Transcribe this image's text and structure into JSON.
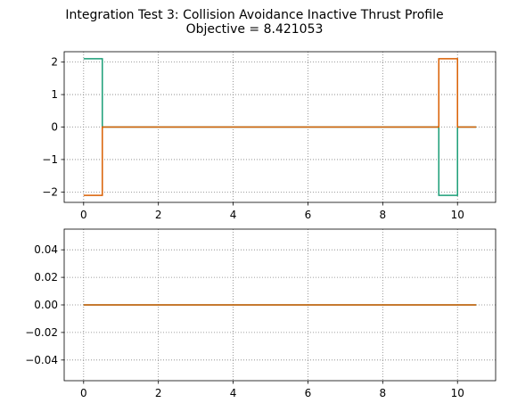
{
  "chart_data": [
    {
      "type": "line",
      "title": "Integration Test 3: Collision Avoidance Inactive Thrust Profile",
      "subtitle": "Objective = 8.421053",
      "xlabel": "",
      "ylabel": "",
      "xlim": [
        -0.52,
        11.02
      ],
      "ylim": [
        -2.32,
        2.32
      ],
      "xticks": [
        0,
        2,
        4,
        6,
        8,
        10
      ],
      "yticks": [
        -2,
        -1,
        0,
        1,
        2
      ],
      "ytick_labels": [
        "−2",
        "−1",
        "0",
        "1",
        "2"
      ],
      "grid": true,
      "step": "post",
      "series": [
        {
          "color": "#1b9e77",
          "x": [
            0,
            0.5,
            9.5,
            10,
            10.5
          ],
          "y": [
            2.105,
            0,
            -2.105,
            0,
            0
          ]
        },
        {
          "color": "#d95f02",
          "x": [
            0,
            0.5,
            9.5,
            10,
            10.5
          ],
          "y": [
            -2.105,
            0,
            2.105,
            0,
            0
          ]
        }
      ]
    },
    {
      "type": "line",
      "title": "",
      "xlabel": "",
      "ylabel": "",
      "xlim": [
        -0.52,
        11.02
      ],
      "ylim": [
        -0.055,
        0.055
      ],
      "xticks": [
        0,
        2,
        4,
        6,
        8,
        10
      ],
      "yticks": [
        -0.04,
        -0.02,
        0.0,
        0.02,
        0.04
      ],
      "ytick_labels": [
        "−0.04",
        "−0.02",
        "0.00",
        "0.02",
        "0.04"
      ],
      "grid": true,
      "step": "post",
      "series": [
        {
          "color": "#1b9e77",
          "x": [
            0,
            10.5
          ],
          "y": [
            0,
            0
          ]
        },
        {
          "color": "#d95f02",
          "x": [
            0,
            10.5
          ],
          "y": [
            0,
            0
          ]
        }
      ]
    }
  ]
}
